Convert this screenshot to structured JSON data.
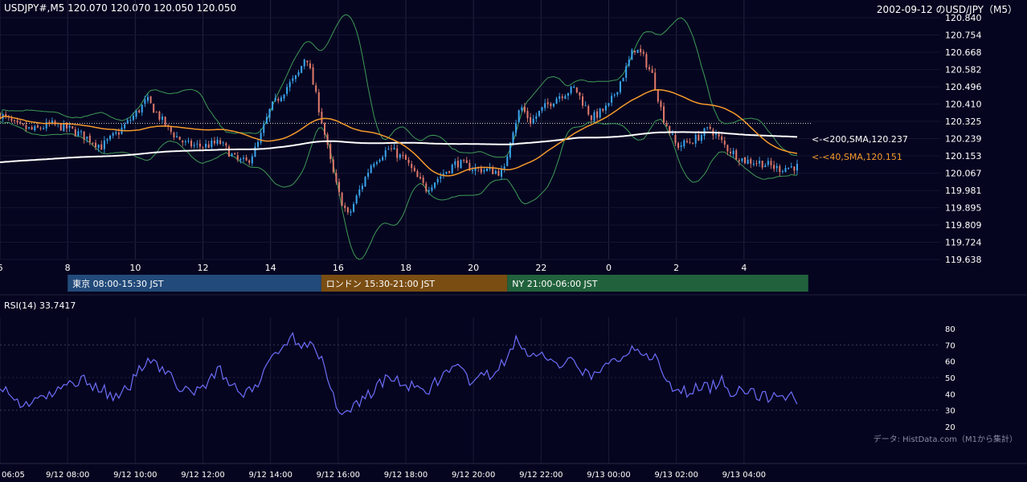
{
  "header": {
    "symbol_info": "USDJPY#,M5 120.070 120.070 120.050 120.050",
    "date_title": "2002-09-12 のUSD/JPY（M5）"
  },
  "sessions": [
    {
      "label": "東京 08:00-15:30 JST",
      "color": "#224a7a"
    },
    {
      "label": "ロンドン 15:30-21:00 JST",
      "color": "#7a4d12"
    },
    {
      "label": "NY 21:00-06:00 JST",
      "color": "#21623c"
    }
  ],
  "rsi_label": "RSI(14) 33.7417",
  "source_note": "データ: HistData.com（M1から集計）",
  "colors": {
    "background": "#050520",
    "bull": "#3aa6ef",
    "bear": "#e07a6a",
    "sma200": "#ffffff",
    "sma40": "#f59a2a",
    "bollinger": "#3f9a55",
    "rsi": "#6d6dfa"
  },
  "chart_data": [
    {
      "type": "candlestick",
      "title": "USDJPY#,M5",
      "x_tick_labels": [
        "6",
        "8",
        "10",
        "12",
        "14",
        "16",
        "18",
        "20",
        "22",
        "0",
        "2",
        "4"
      ],
      "y_tick_labels": [
        "120.840",
        "120.754",
        "120.668",
        "120.582",
        "120.496",
        "120.410",
        "120.325",
        "120.239",
        "120.153",
        "120.067",
        "119.981",
        "119.895",
        "119.809",
        "119.724",
        "119.638"
      ],
      "ylim": [
        119.638,
        120.84
      ],
      "candle_count": 276,
      "x_range_hours": [
        6.0,
        5.0
      ],
      "reference_level": 120.315,
      "anchors_close": [
        [
          6.0,
          120.36
        ],
        [
          6.5,
          120.3
        ],
        [
          7.0,
          120.28
        ],
        [
          7.5,
          120.31
        ],
        [
          8.0,
          120.29
        ],
        [
          8.5,
          120.25
        ],
        [
          9.0,
          120.2
        ],
        [
          9.5,
          120.27
        ],
        [
          10.0,
          120.36
        ],
        [
          10.35,
          120.43
        ],
        [
          10.7,
          120.35
        ],
        [
          11.0,
          120.28
        ],
        [
          11.5,
          120.21
        ],
        [
          12.0,
          120.2
        ],
        [
          12.5,
          120.22
        ],
        [
          13.0,
          120.13
        ],
        [
          13.3,
          120.12
        ],
        [
          13.6,
          120.2
        ],
        [
          14.0,
          120.39
        ],
        [
          14.5,
          120.5
        ],
        [
          14.8,
          120.55
        ],
        [
          15.05,
          120.66
        ],
        [
          15.3,
          120.48
        ],
        [
          15.5,
          120.34
        ],
        [
          15.8,
          120.1
        ],
        [
          16.0,
          119.97
        ],
        [
          16.3,
          119.85
        ],
        [
          16.6,
          119.97
        ],
        [
          17.0,
          120.12
        ],
        [
          17.5,
          120.19
        ],
        [
          18.0,
          120.13
        ],
        [
          18.3,
          120.05
        ],
        [
          18.6,
          119.99
        ],
        [
          19.0,
          120.05
        ],
        [
          19.5,
          120.12
        ],
        [
          20.0,
          120.09
        ],
        [
          20.5,
          120.08
        ],
        [
          20.9,
          120.07
        ],
        [
          21.1,
          120.25
        ],
        [
          21.4,
          120.4
        ],
        [
          21.7,
          120.32
        ],
        [
          22.0,
          120.38
        ],
        [
          22.5,
          120.45
        ],
        [
          23.0,
          120.49
        ],
        [
          23.5,
          120.34
        ],
        [
          24.0,
          120.4
        ],
        [
          24.5,
          120.58
        ],
        [
          24.75,
          120.69
        ],
        [
          25.0,
          120.65
        ],
        [
          25.3,
          120.55
        ],
        [
          25.6,
          120.35
        ],
        [
          26.0,
          120.2
        ],
        [
          26.5,
          120.23
        ],
        [
          27.0,
          120.29
        ],
        [
          27.5,
          120.19
        ],
        [
          28.0,
          120.13
        ],
        [
          28.5,
          120.12
        ],
        [
          29.0,
          120.09
        ],
        [
          29.5,
          120.1
        ],
        [
          29.9,
          120.09
        ],
        [
          30.0,
          120.06
        ]
      ],
      "series": [
        {
          "name": "200,SMA",
          "last_value": 120.237,
          "label": "<-<200,SMA,120.237"
        },
        {
          "name": "40,SMA",
          "last_value": 120.151,
          "label": "<-<40,SMA,120.151"
        }
      ]
    },
    {
      "type": "line",
      "title": "RSI(14) 33.7417",
      "y_tick_labels": [
        "80",
        "70",
        "60",
        "50",
        "40",
        "30",
        "20"
      ],
      "ylim": [
        20,
        80
      ],
      "x_tick_labels": [
        "06:05",
        "9/12 08:00",
        "9/12 10:00",
        "9/12 12:00",
        "9/12 14:00",
        "9/12 16:00",
        "9/12 18:00",
        "9/12 20:00",
        "9/12 22:00",
        "9/13 00:00",
        "9/13 02:00",
        "9/13 04:00"
      ],
      "anchors": [
        [
          6.0,
          47
        ],
        [
          6.3,
          38
        ],
        [
          6.7,
          33
        ],
        [
          7.0,
          37
        ],
        [
          7.5,
          38
        ],
        [
          8.0,
          46
        ],
        [
          8.5,
          49
        ],
        [
          9.0,
          43
        ],
        [
          9.5,
          36
        ],
        [
          10.0,
          50
        ],
        [
          10.4,
          64
        ],
        [
          10.8,
          55
        ],
        [
          11.2,
          47
        ],
        [
          11.6,
          39
        ],
        [
          12.0,
          45
        ],
        [
          12.5,
          55
        ],
        [
          13.0,
          42
        ],
        [
          13.5,
          40
        ],
        [
          14.0,
          62
        ],
        [
          14.3,
          69
        ],
        [
          14.6,
          74
        ],
        [
          15.0,
          71
        ],
        [
          15.3,
          72
        ],
        [
          15.6,
          55
        ],
        [
          15.9,
          35
        ],
        [
          16.2,
          28
        ],
        [
          16.5,
          33
        ],
        [
          17.0,
          42
        ],
        [
          17.5,
          50
        ],
        [
          18.0,
          46
        ],
        [
          18.5,
          40
        ],
        [
          19.0,
          50
        ],
        [
          19.5,
          55
        ],
        [
          20.0,
          47
        ],
        [
          20.5,
          52
        ],
        [
          21.0,
          60
        ],
        [
          21.3,
          76
        ],
        [
          21.6,
          62
        ],
        [
          22.0,
          65
        ],
        [
          22.5,
          55
        ],
        [
          23.0,
          60
        ],
        [
          23.5,
          49
        ],
        [
          24.0,
          58
        ],
        [
          24.5,
          65
        ],
        [
          24.8,
          70
        ],
        [
          25.1,
          66
        ],
        [
          25.4,
          60
        ],
        [
          25.7,
          47
        ],
        [
          26.0,
          40
        ],
        [
          26.5,
          43
        ],
        [
          27.0,
          44
        ],
        [
          27.3,
          49
        ],
        [
          27.6,
          41
        ],
        [
          28.0,
          44
        ],
        [
          28.5,
          37
        ],
        [
          29.0,
          40
        ],
        [
          29.5,
          38
        ],
        [
          29.9,
          45
        ],
        [
          30.0,
          33.7
        ]
      ],
      "reference_lines": [
        70,
        30
      ]
    }
  ]
}
